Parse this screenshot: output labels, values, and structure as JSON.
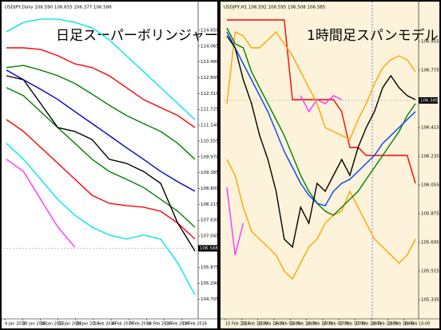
{
  "chart_data": [
    {
      "type": "line",
      "title": "日足スーパーボリンジャー",
      "header": "USDJPY,Daily 106.590 106.655 106.377 106.588",
      "x_labels": [
        "4 Jan 2016",
        "10 Jan 2016",
        "16 Jan 2016",
        "22 Jan 2016",
        "26 Jan 2016",
        "1 Feb 2016",
        "4 Feb 2016",
        "7 Feb 2016",
        "10 Feb 2016",
        "13 Feb 2016",
        "19 Feb 2016"
      ],
      "ylim": [
        104.04,
        115.18
      ],
      "yticks": [
        {
          "value": 114.65,
          "label": "114.650"
        },
        {
          "value": 114.065,
          "label": "114.065"
        },
        {
          "value": 113.48,
          "label": "113.480"
        },
        {
          "value": 112.895,
          "label": "112.895"
        },
        {
          "value": 112.31,
          "label": "112.310"
        },
        {
          "value": 111.725,
          "label": "111.725"
        },
        {
          "value": 111.14,
          "label": "111.140"
        },
        {
          "value": 110.555,
          "label": "110.555"
        },
        {
          "value": 109.97,
          "label": "109.970"
        },
        {
          "value": 109.385,
          "label": "109.385"
        },
        {
          "value": 108.8,
          "label": "108.800"
        },
        {
          "value": 108.215,
          "label": "108.215"
        },
        {
          "value": 107.63,
          "label": "107.630"
        },
        {
          "value": 107.045,
          "label": "107.045"
        },
        {
          "value": 105.875,
          "label": "105.875"
        },
        {
          "value": 105.29,
          "label": "105.290"
        },
        {
          "value": 104.705,
          "label": "104.705"
        }
      ],
      "last": {
        "value": 106.588,
        "label": "106.588"
      },
      "background": "#ffffff",
      "series": [
        {
          "color": "#00e5ee",
          "values": [
            114.59,
            114.94,
            115.06,
            115.06,
            114.94,
            114.74,
            114.3,
            113.71,
            113.12,
            112.53,
            111.94,
            111.35
          ]
        },
        {
          "color": "#ff0000",
          "values": [
            114.0,
            114.0,
            113.94,
            113.71,
            113.41,
            113.27,
            112.97,
            112.53,
            112.09,
            111.79,
            111.5,
            111.05
          ]
        },
        {
          "color": "#008000",
          "values": [
            113.27,
            113.35,
            113.18,
            112.97,
            112.68,
            112.29,
            111.88,
            111.5,
            111.2,
            110.91,
            110.47,
            109.88
          ]
        },
        {
          "color": "#0000cc",
          "values": [
            113.18,
            112.82,
            112.47,
            112.09,
            111.64,
            111.2,
            110.76,
            110.31,
            109.88,
            109.43,
            109.05,
            108.7
          ]
        },
        {
          "color": "#008000",
          "values": [
            112.53,
            112.23,
            111.64,
            111.05,
            110.47,
            109.88,
            109.43,
            109.14,
            108.84,
            108.4,
            107.96,
            107.37
          ]
        },
        {
          "color": "#ff0000",
          "values": [
            111.35,
            110.91,
            110.32,
            109.73,
            109.14,
            108.55,
            108.25,
            108.17,
            108.11,
            107.96,
            107.52,
            106.93
          ]
        },
        {
          "color": "#00e5ee",
          "values": [
            110.47,
            109.88,
            109.14,
            108.4,
            107.81,
            107.37,
            107.08,
            106.93,
            107.08,
            106.93,
            106.05,
            104.87
          ]
        },
        {
          "color": "#ff33ff",
          "values": [
            109.88,
            109.43,
            108.4,
            107.37,
            106.63,
            null,
            null,
            null,
            null,
            null,
            null,
            null
          ]
        },
        {
          "color": "#000000",
          "values": [
            112.97,
            112.82,
            111.94,
            111.05,
            110.91,
            110.61,
            109.88,
            109.73,
            109.43,
            108.99,
            107.52,
            106.49
          ]
        }
      ]
    },
    {
      "type": "line",
      "title": "1時間足スパンモデル",
      "header": "USDJPY,H1 106.592 106.595 106.508 106.585",
      "x_labels": [
        "15 Feb 2016",
        "15 Feb 10:00",
        "15 Feb 18:00",
        "16 Feb 02:00",
        "16 Feb 10:00",
        "16 Feb 18:00",
        "17 Feb 02:00",
        "17 Feb 10:00",
        "17 Feb 18:00",
        "18 Feb 10:00",
        "18 Feb 18:00",
        "19 Feb 10:00"
      ],
      "ylim": [
        105.225,
        107.115
      ],
      "yticks": [
        {
          "value": 106.955,
          "label": "106.955"
        },
        {
          "value": 106.775,
          "label": "106.775"
        },
        {
          "value": 106.415,
          "label": "106.415"
        },
        {
          "value": 106.235,
          "label": "106.235"
        },
        {
          "value": 106.055,
          "label": "106.055"
        },
        {
          "value": 105.875,
          "label": "105.875"
        },
        {
          "value": 105.695,
          "label": "105.695"
        },
        {
          "value": 105.515,
          "label": "105.515"
        },
        {
          "value": 105.335,
          "label": "105.335"
        }
      ],
      "last": {
        "value": 106.585,
        "label": "106.585"
      },
      "background": "#fcf3da",
      "series": [
        {
          "color": "#ff0000",
          "values": [
            107.09,
            107.09,
            107.09,
            107.09,
            107.09,
            107.09,
            107.09,
            107.09,
            106.59,
            106.59,
            106.59,
            106.59,
            106.59,
            106.59,
            106.515,
            106.29,
            106.29,
            106.24,
            106.24,
            106.24,
            106.24,
            106.24,
            106.24,
            106.065
          ]
        },
        {
          "color": "#ff33ff",
          "values": [
            106.04,
            105.615,
            105.815,
            null,
            null,
            null,
            null,
            null,
            null,
            106.615,
            106.515,
            106.59,
            106.565,
            106.615,
            106.59,
            null,
            null,
            null,
            null,
            null,
            null,
            null,
            null,
            null
          ]
        },
        {
          "color": "#ffa500",
          "values": [
            106.565,
            107.015,
            106.99,
            106.915,
            106.915,
            106.965,
            107.015,
            106.94,
            106.865,
            106.765,
            106.665,
            106.565,
            106.415,
            106.39,
            106.365,
            106.34,
            106.465,
            106.565,
            106.69,
            106.79,
            106.84,
            106.865,
            106.84,
            106.765
          ]
        },
        {
          "color": "#ffa500",
          "values": [
            106.215,
            106.115,
            105.915,
            105.765,
            105.715,
            105.665,
            105.615,
            105.515,
            105.465,
            105.565,
            105.665,
            105.715,
            105.815,
            105.865,
            105.89,
            106.015,
            105.915,
            105.815,
            105.715,
            105.665,
            105.615,
            105.565,
            105.615,
            105.715
          ]
        },
        {
          "color": "#008000",
          "values": [
            107.04,
            106.94,
            106.915,
            106.765,
            106.665,
            106.565,
            106.465,
            106.365,
            106.24,
            106.115,
            106.015,
            105.94,
            105.89,
            105.865,
            105.915,
            105.965,
            106.015,
            106.09,
            106.165,
            106.24,
            106.315,
            106.39,
            106.49,
            106.565
          ]
        },
        {
          "color": "#0044ff",
          "values": [
            107.015,
            106.915,
            106.815,
            106.715,
            106.615,
            106.515,
            106.39,
            106.265,
            106.165,
            106.065,
            105.99,
            105.94,
            105.925,
            106.015,
            106.065,
            106.09,
            106.14,
            106.19,
            106.24,
            106.315,
            106.365,
            106.415,
            106.465,
            106.515
          ]
        },
        {
          "color": "#000000",
          "values": [
            106.99,
            106.915,
            106.715,
            106.565,
            106.365,
            106.215,
            106.015,
            105.715,
            105.665,
            105.915,
            105.815,
            106.065,
            106.015,
            106.115,
            106.215,
            106.115,
            106.29,
            106.415,
            106.515,
            106.665,
            106.74,
            106.665,
            106.615,
            106.59
          ]
        }
      ]
    }
  ]
}
